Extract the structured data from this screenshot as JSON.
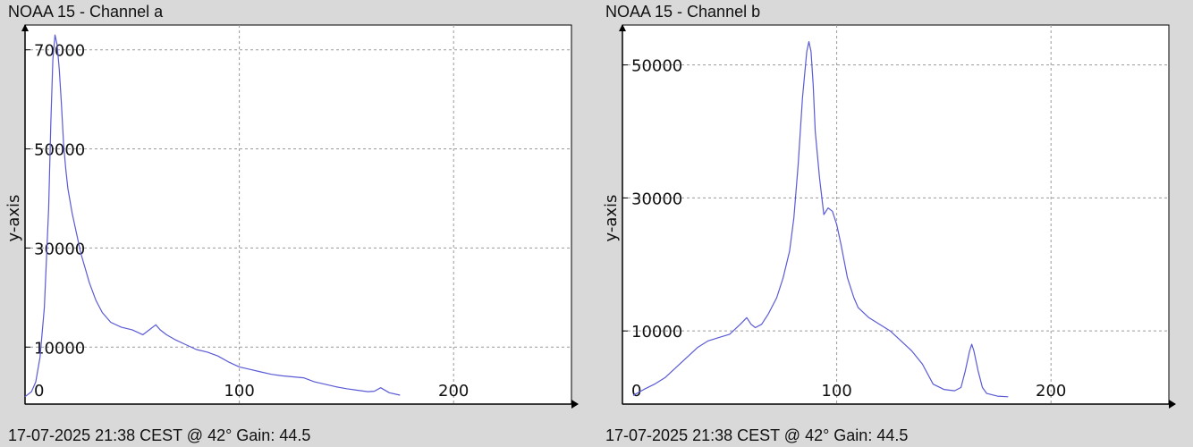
{
  "charts": [
    {
      "id": "a",
      "title": "NOAA 15 - Channel a",
      "footer": "17-07-2025 21:38 CEST @ 42° Gain: 44.5"
    },
    {
      "id": "b",
      "title": "NOAA 15 - Channel b",
      "footer": "17-07-2025 21:38 CEST @ 42° Gain: 44.5"
    }
  ],
  "colors": {
    "line": "#5a5ad6",
    "grid": "#9a9a9a",
    "plot_bg": "#ffffff",
    "page_bg": "#d9d9d9"
  },
  "chart_data": [
    {
      "type": "line",
      "title": "NOAA 15 - Channel a",
      "xlabel": "",
      "ylabel": "y-axis",
      "xlim": [
        0,
        255
      ],
      "ylim": [
        -1500,
        75000
      ],
      "xticks": [
        0,
        100,
        200
      ],
      "xtick_labels": [
        "0",
        "100",
        "200"
      ],
      "yticks": [
        10000,
        30000,
        50000,
        70000
      ],
      "ytick_labels": [
        "10000",
        "30000",
        "50000",
        "70000"
      ],
      "grid": true,
      "series": [
        {
          "x": [
            0,
            3,
            5,
            7,
            9,
            11,
            12,
            13,
            14,
            15,
            16,
            17,
            18,
            19,
            20,
            22,
            24,
            26,
            28,
            30,
            33,
            36,
            40,
            45,
            50,
            55,
            58,
            61,
            63,
            66,
            70,
            75,
            80,
            85,
            90,
            95,
            100,
            105,
            110,
            115,
            120,
            125,
            130,
            135,
            140,
            145,
            150,
            155,
            160,
            163,
            166,
            170,
            175
          ],
          "y": [
            0,
            1000,
            3000,
            8000,
            18000,
            38000,
            55000,
            68000,
            73000,
            71000,
            66000,
            59000,
            51000,
            46000,
            42000,
            37000,
            33000,
            29000,
            26000,
            23000,
            19500,
            17000,
            15000,
            14000,
            13500,
            12500,
            13500,
            14500,
            13500,
            12500,
            11500,
            10500,
            9500,
            9000,
            8200,
            7000,
            6000,
            5500,
            5000,
            4500,
            4200,
            4000,
            3800,
            3000,
            2500,
            2000,
            1600,
            1300,
            1000,
            1100,
            1800,
            800,
            300
          ]
        }
      ]
    },
    {
      "type": "line",
      "title": "NOAA 15 - Channel b",
      "xlabel": "",
      "ylabel": "y-axis",
      "xlim": [
        0,
        255
      ],
      "ylim": [
        -1000,
        56000
      ],
      "xticks": [
        0,
        100,
        200
      ],
      "xtick_labels": [
        "0",
        "100",
        "200"
      ],
      "yticks": [
        10000,
        30000,
        50000
      ],
      "ytick_labels": [
        "10000",
        "30000",
        "50000"
      ],
      "grid": true,
      "series": [
        {
          "x": [
            5,
            10,
            15,
            20,
            25,
            30,
            35,
            40,
            45,
            50,
            55,
            58,
            60,
            62,
            65,
            68,
            72,
            75,
            78,
            80,
            82,
            84,
            86,
            87,
            88,
            89,
            90,
            92,
            94,
            96,
            98,
            100,
            102,
            105,
            108,
            110,
            115,
            120,
            125,
            130,
            135,
            140,
            145,
            150,
            155,
            158,
            160,
            162,
            163,
            164,
            166,
            168,
            170,
            175,
            180
          ],
          "y": [
            300,
            1200,
            2000,
            3000,
            4500,
            6000,
            7500,
            8500,
            9000,
            9500,
            11000,
            12000,
            11000,
            10500,
            11000,
            12500,
            15000,
            18000,
            22000,
            27000,
            35000,
            45000,
            52000,
            53500,
            52000,
            47000,
            40000,
            33000,
            27500,
            28500,
            28000,
            26000,
            23000,
            18000,
            15000,
            13500,
            12000,
            11000,
            10000,
            8500,
            7000,
            5000,
            2000,
            1200,
            1000,
            1500,
            4000,
            7000,
            8000,
            7000,
            4000,
            1500,
            600,
            200,
            100
          ]
        }
      ]
    }
  ]
}
